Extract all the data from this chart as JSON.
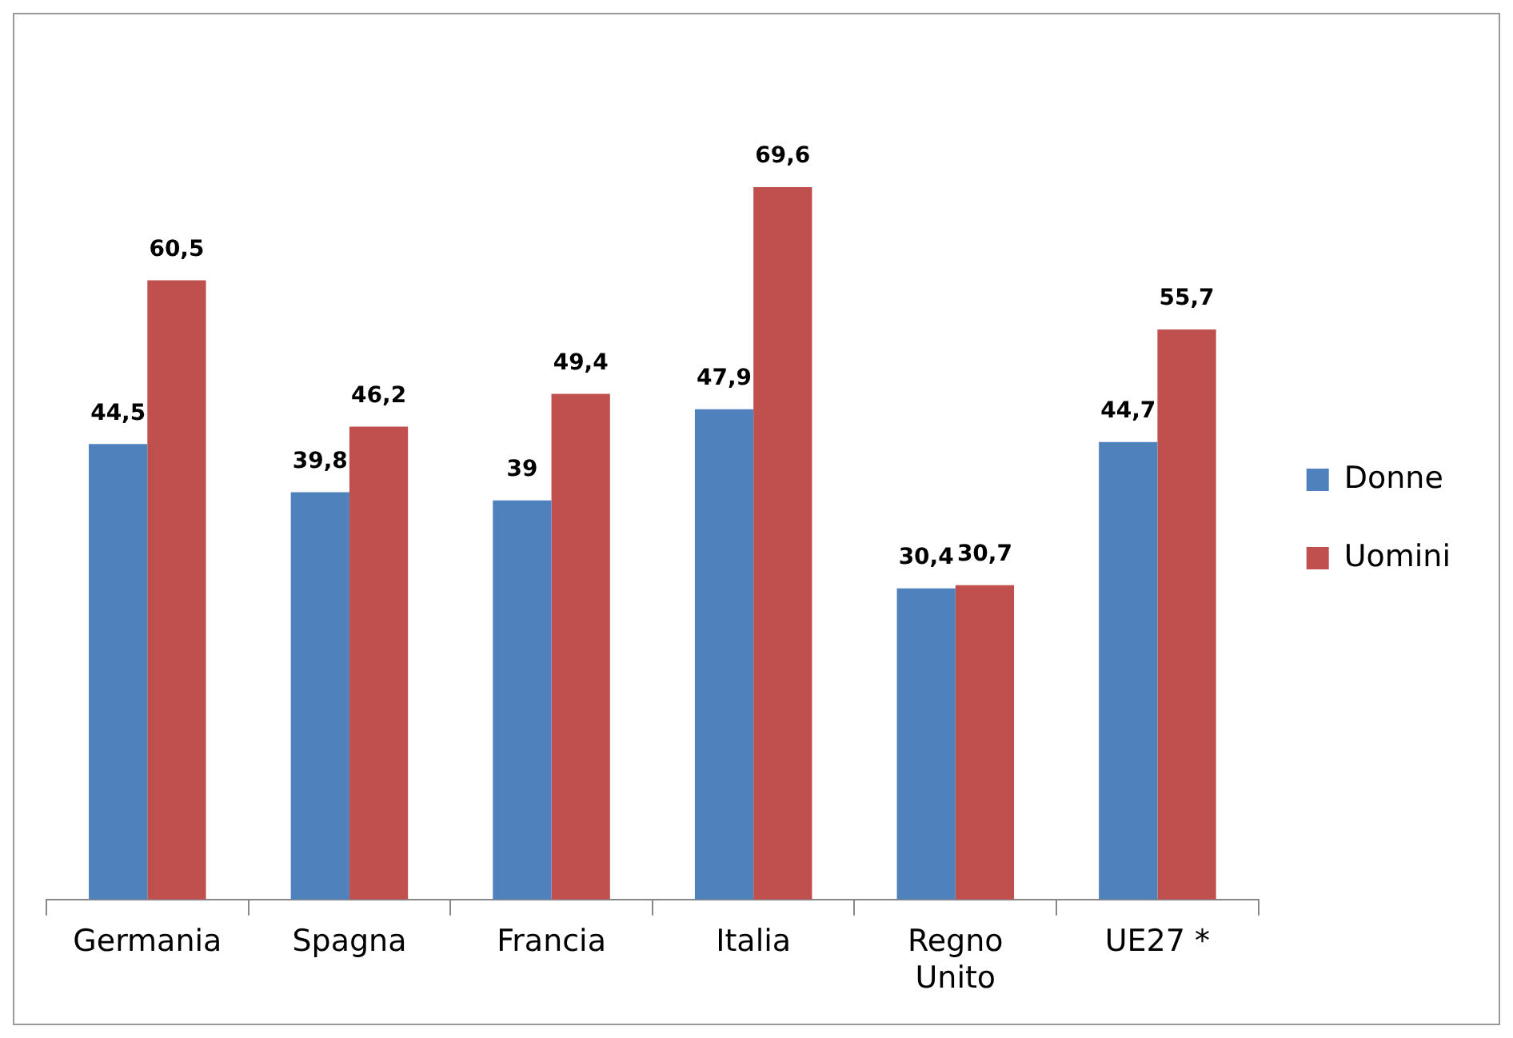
{
  "chart_data": {
    "type": "bar",
    "categories": [
      "Germania",
      "Spagna",
      "Francia",
      "Italia",
      "Regno Unito",
      "UE27 *"
    ],
    "series": [
      {
        "name": "Donne",
        "color": "#4f81bd",
        "values": [
          44.5,
          39.8,
          39,
          47.9,
          30.4,
          44.7
        ],
        "value_labels": [
          "44,5",
          "39,8",
          "39",
          "47,9",
          "30,4",
          "44,7"
        ]
      },
      {
        "name": "Uomini",
        "color": "#c0504d",
        "values": [
          60.5,
          46.2,
          49.4,
          69.6,
          30.7,
          55.7
        ],
        "value_labels": [
          "60,5",
          "46,2",
          "49,4",
          "69,6",
          "30,7",
          "55,7"
        ]
      }
    ],
    "legend": "right",
    "grid": false,
    "tick_labels": "x"
  }
}
